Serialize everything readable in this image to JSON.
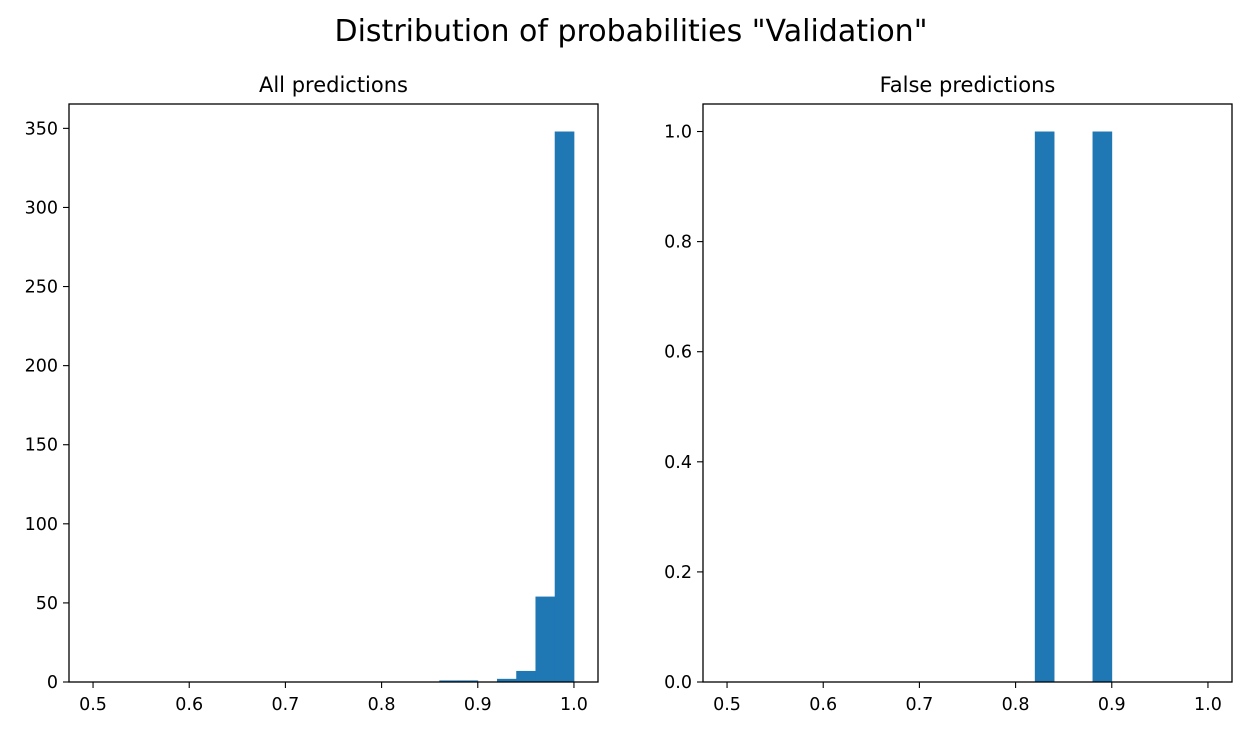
{
  "figure": {
    "suptitle": "Distribution of probabilities \"Validation\"",
    "bar_color": "#1f77b4"
  },
  "chart_data": [
    {
      "type": "bar",
      "title": "All predictions",
      "xlabel": "",
      "ylabel": "",
      "bin_edges": [
        0.5,
        0.52,
        0.54,
        0.56,
        0.58,
        0.6,
        0.62,
        0.64,
        0.66,
        0.68,
        0.7,
        0.72,
        0.74,
        0.76,
        0.78,
        0.8,
        0.82,
        0.84,
        0.86,
        0.88,
        0.9,
        0.92,
        0.94,
        0.96,
        0.98,
        1.0
      ],
      "values": [
        0,
        0,
        0,
        0,
        0,
        0,
        0,
        0,
        0,
        0,
        0,
        0,
        0,
        0,
        0,
        0,
        0,
        0,
        1,
        1,
        0,
        2,
        7,
        54,
        348
      ],
      "xlim": [
        0.475,
        1.025
      ],
      "ylim": [
        0,
        365.4
      ],
      "xticks": [
        "0.5",
        "0.6",
        "0.7",
        "0.8",
        "0.9",
        "1.0"
      ],
      "yticks": [
        "0",
        "50",
        "100",
        "150",
        "200",
        "250",
        "300",
        "350"
      ]
    },
    {
      "type": "bar",
      "title": "False predictions",
      "xlabel": "",
      "ylabel": "",
      "bin_edges": [
        0.5,
        0.52,
        0.54,
        0.56,
        0.58,
        0.6,
        0.62,
        0.64,
        0.66,
        0.68,
        0.7,
        0.72,
        0.74,
        0.76,
        0.78,
        0.8,
        0.82,
        0.84,
        0.86,
        0.88,
        0.9,
        0.92,
        0.94,
        0.96,
        0.98,
        1.0
      ],
      "values": [
        0,
        0,
        0,
        0,
        0,
        0,
        0,
        0,
        0,
        0,
        0,
        0,
        0,
        0,
        0,
        0,
        1,
        0,
        0,
        1,
        0,
        0,
        0,
        0,
        0
      ],
      "xlim": [
        0.475,
        1.025
      ],
      "ylim": [
        0,
        1.05
      ],
      "xticks": [
        "0.5",
        "0.6",
        "0.7",
        "0.8",
        "0.9",
        "1.0"
      ],
      "yticks": [
        "0.0",
        "0.2",
        "0.4",
        "0.6",
        "0.8",
        "1.0"
      ]
    }
  ]
}
